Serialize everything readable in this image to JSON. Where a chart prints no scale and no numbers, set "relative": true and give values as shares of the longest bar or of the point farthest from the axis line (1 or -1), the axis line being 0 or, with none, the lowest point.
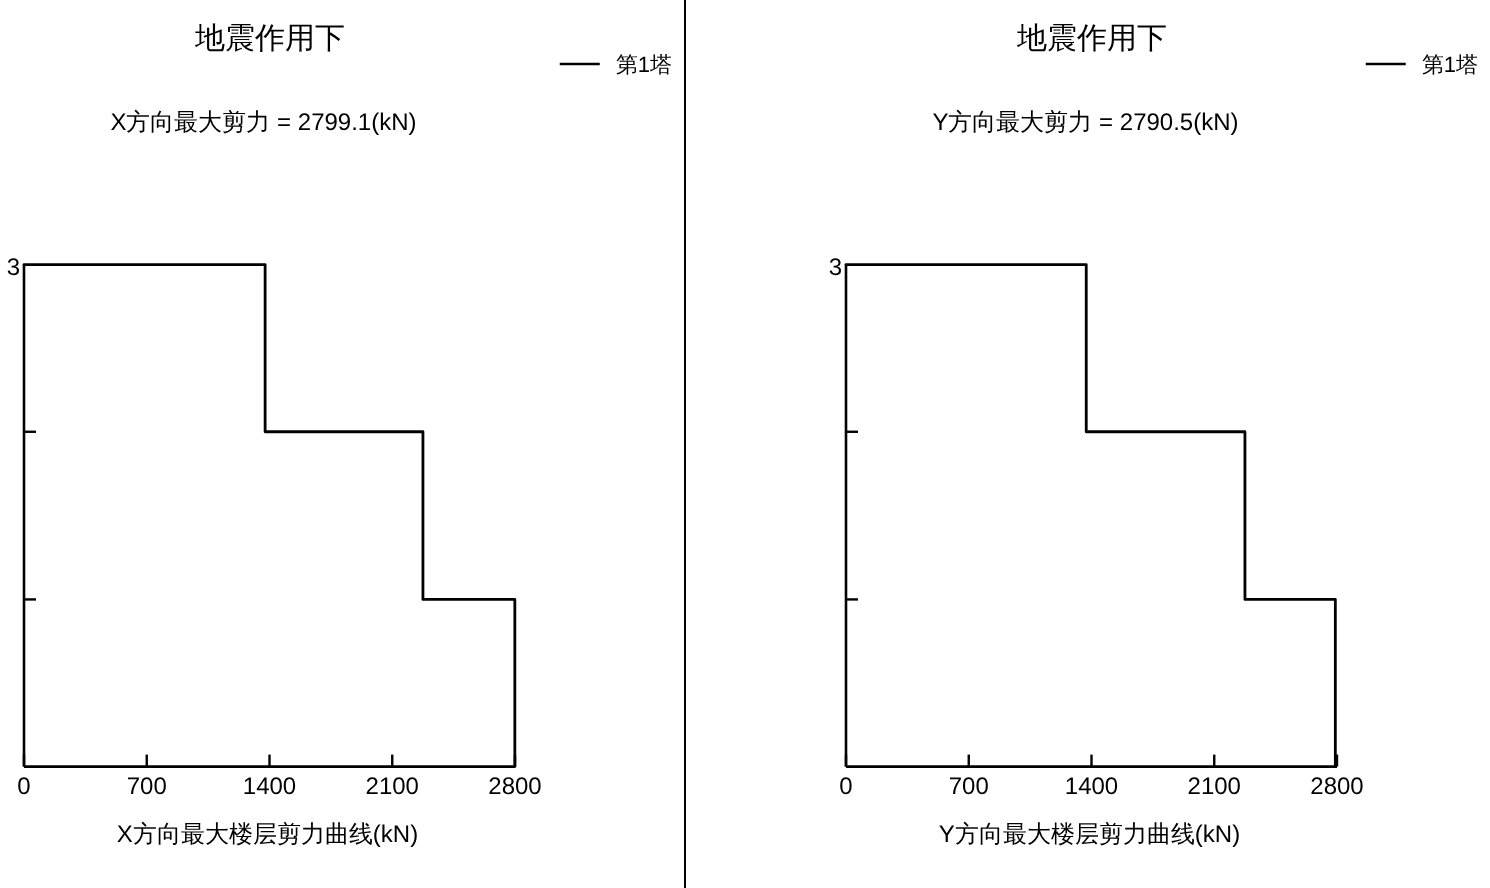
{
  "chart_data": [
    {
      "type": "line",
      "title": "地震作用下",
      "subtitle": "X方向最大剪力 = 2799.1(kN)",
      "xlabel": "X方向最大楼层剪力曲线(kN)",
      "relative": true,
      "series": [
        {
          "name": "第1塔",
          "color": "#000000",
          "x": [
            0,
            1375,
            1375,
            2275,
            2275,
            2799.1,
            2799.1
          ],
          "values": [
            1,
            1,
            0.667,
            0.667,
            0.333,
            0.333,
            0
          ]
        }
      ],
      "xlim": [
        0,
        2800
      ],
      "xticks": [
        0,
        700,
        1400,
        2100,
        2800
      ],
      "annotations": [
        "3"
      ],
      "legend": "top right",
      "line_style": "solid"
    },
    {
      "type": "line",
      "title": "地震作用下",
      "subtitle": "Y方向最大剪力 = 2790.5(kN)",
      "xlabel": "Y方向最大楼层剪力曲线(kN)",
      "relative": true,
      "series": [
        {
          "name": "第1塔",
          "color": "#000000",
          "x": [
            0,
            1370,
            1370,
            2275,
            2275,
            2790.5,
            2790.5
          ],
          "values": [
            1,
            1,
            0.667,
            0.667,
            0.333,
            0.333,
            0
          ]
        }
      ],
      "xlim": [
        0,
        2800
      ],
      "xticks": [
        0,
        700,
        1400,
        2100,
        2800
      ],
      "annotations": [
        "3"
      ],
      "legend": "top right",
      "line_style": "solid"
    }
  ]
}
